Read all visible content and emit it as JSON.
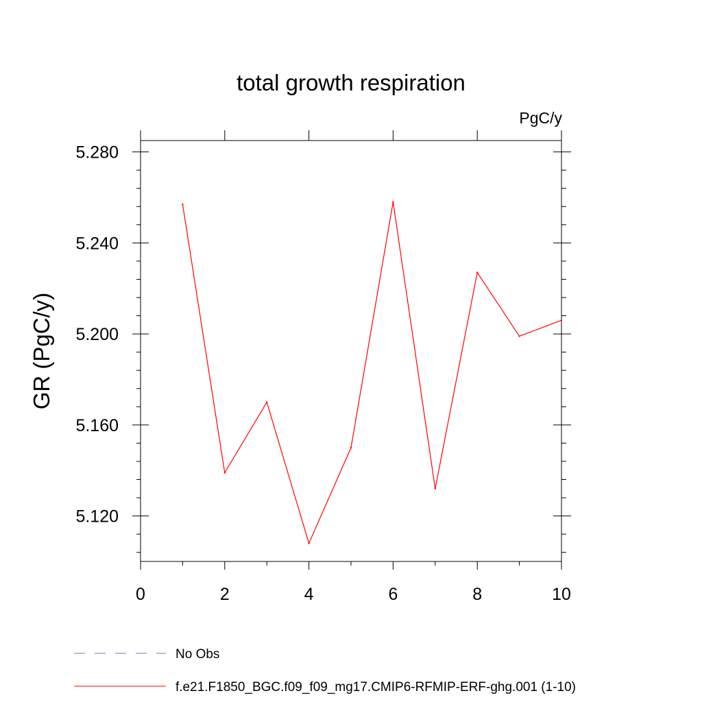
{
  "chart_data": {
    "type": "line",
    "title": "total growth respiration",
    "units_label": "PgC/y",
    "xlabel": "",
    "ylabel": "GR  (PgC/y)",
    "xlim": [
      0,
      10
    ],
    "ylim": [
      5.1,
      5.285
    ],
    "x_ticks": [
      0,
      2,
      4,
      6,
      8,
      10
    ],
    "x_tick_labels": [
      "0",
      "2",
      "4",
      "6",
      "8",
      "10"
    ],
    "y_ticks": [
      5.12,
      5.16,
      5.2,
      5.24,
      5.28
    ],
    "y_tick_labels": [
      "5.120",
      "5.160",
      "5.200",
      "5.240",
      "5.280"
    ],
    "series": [
      {
        "name": "f.e21.F1850_BGC.f09_f09_mg17.CMIP6-RFMIP-ERF-ghg.001 (1-10)",
        "color": "#ff0000",
        "x": [
          1,
          2,
          3,
          4,
          5,
          6,
          7,
          8,
          9,
          10
        ],
        "values": [
          5.257,
          5.139,
          5.17,
          5.108,
          5.15,
          5.258,
          5.132,
          5.227,
          5.199,
          5.206
        ]
      }
    ],
    "legend": [
      {
        "label": "No Obs",
        "color": "#7a6fb8",
        "style": "dashed"
      },
      {
        "label": "f.e21.F1850_BGC.f09_f09_mg17.CMIP6-RFMIP-ERF-ghg.001 (1-10)",
        "color": "#ff0000",
        "style": "solid"
      }
    ],
    "legend_position": "bottom-left"
  }
}
